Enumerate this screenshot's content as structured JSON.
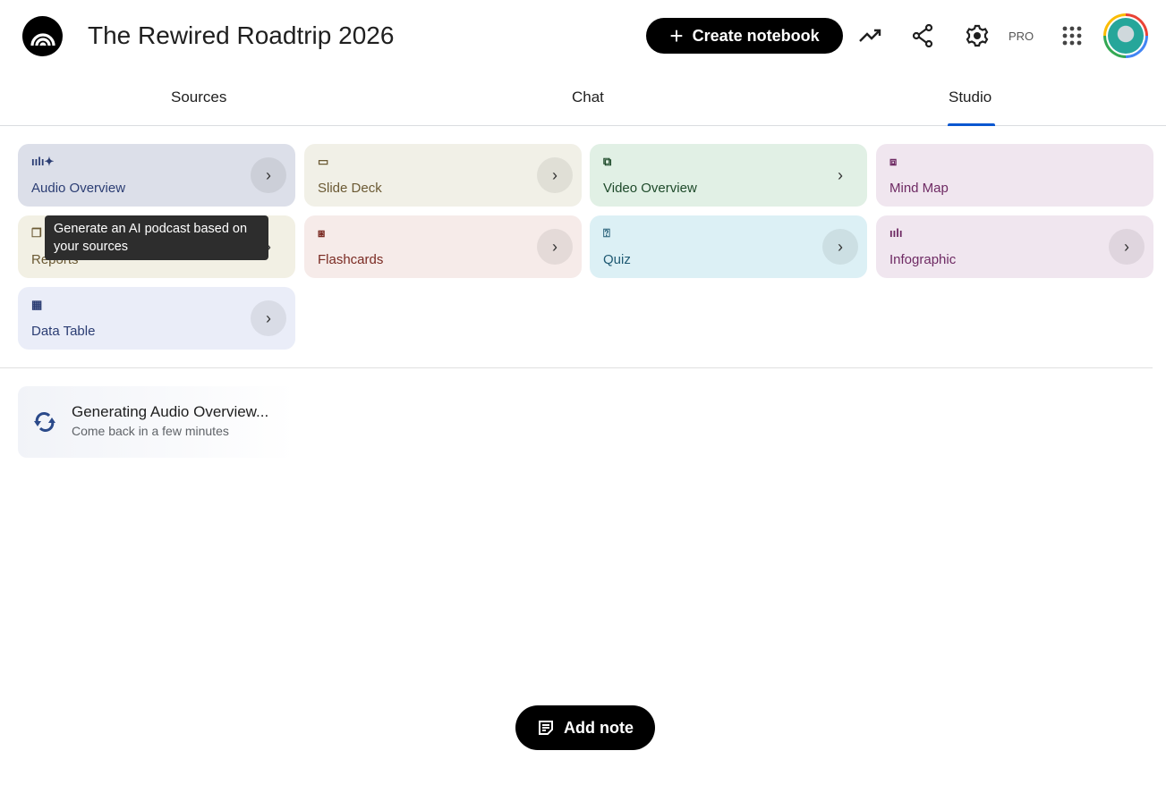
{
  "header": {
    "title": "The Rewired Roadtrip 2026",
    "create_label": "Create notebook",
    "pro_label": "PRO"
  },
  "tabs": [
    {
      "label": "Sources"
    },
    {
      "label": "Chat"
    },
    {
      "label": "Studio",
      "active": true
    }
  ],
  "tiles": [
    {
      "label": "Audio Overview",
      "icon": "audio-waveform-icon",
      "bg": "#dcdfe9",
      "fg": "#2b3d73"
    },
    {
      "label": "Slide Deck",
      "icon": "slides-icon",
      "bg": "#f1f0e7",
      "fg": "#6b5a34"
    },
    {
      "label": "Video Overview",
      "icon": "video-icon",
      "bg": "#e1f0e5",
      "fg": "#1e4a2a"
    },
    {
      "label": "Mind Map",
      "icon": "mind-map-icon",
      "bg": "#f0e6ef",
      "fg": "#6e2a63"
    },
    {
      "label": "Reports",
      "icon": "reports-icon",
      "bg": "#f2f0e4",
      "fg": "#6b5a34"
    },
    {
      "label": "Flashcards",
      "icon": "flashcards-icon",
      "bg": "#f6ebe9",
      "fg": "#7a2a22"
    },
    {
      "label": "Quiz",
      "icon": "quiz-icon",
      "bg": "#dcf0f5",
      "fg": "#1f5a73"
    },
    {
      "label": "Infographic",
      "icon": "infographic-icon",
      "bg": "#f0e6ef",
      "fg": "#6e2a63"
    },
    {
      "label": "Data Table",
      "icon": "table-icon",
      "bg": "#eaedf8",
      "fg": "#2b3d73"
    }
  ],
  "tooltip": "Generate an AI podcast based on your sources",
  "generating": {
    "title": "Generating Audio Overview...",
    "subtitle": "Come back in a few minutes"
  },
  "add_note_label": "Add note"
}
